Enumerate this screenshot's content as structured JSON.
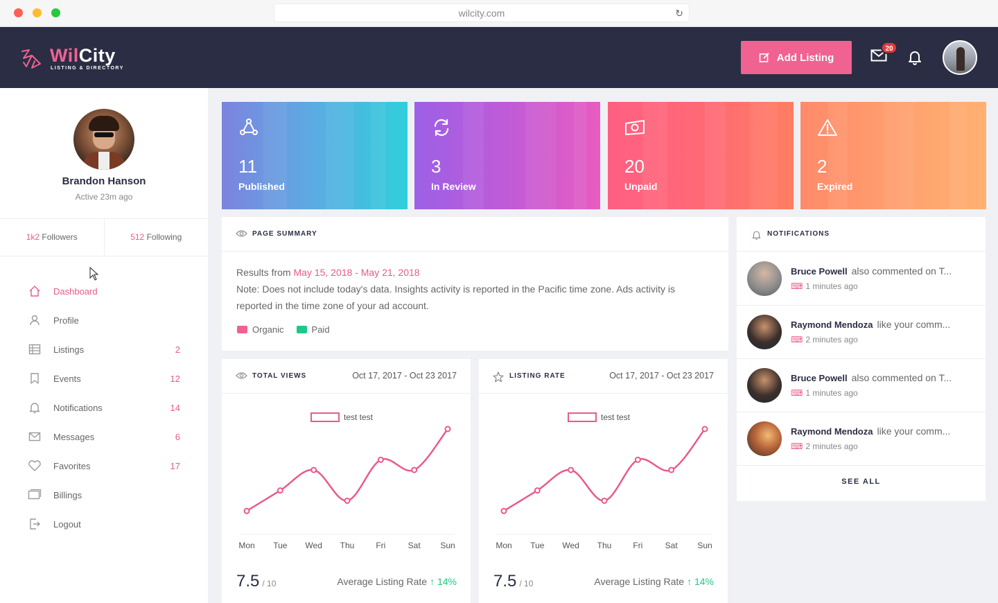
{
  "browser": {
    "url": "wilcity.com"
  },
  "header": {
    "logo_name_a": "Wil",
    "logo_name_b": "City",
    "logo_tag": "LISTING & DIRECTORY",
    "add_listing_label": "Add Listing",
    "mail_badge": "20"
  },
  "profile": {
    "name": "Brandon Hanson",
    "status": "Active 23m ago",
    "followers_count": "1k2",
    "followers_label": "Followers",
    "following_count": "512",
    "following_label": "Following"
  },
  "nav": [
    {
      "label": "Dashboard",
      "count": "",
      "icon": "home-icon"
    },
    {
      "label": "Profile",
      "count": "",
      "icon": "user-icon"
    },
    {
      "label": "Listings",
      "count": "2",
      "icon": "list-icon"
    },
    {
      "label": "Events",
      "count": "12",
      "icon": "bookmark-icon"
    },
    {
      "label": "Notifications",
      "count": "14",
      "icon": "bell-icon"
    },
    {
      "label": "Messages",
      "count": "6",
      "icon": "mail-icon"
    },
    {
      "label": "Favorites",
      "count": "17",
      "icon": "heart-icon"
    },
    {
      "label": "Billings",
      "count": "",
      "icon": "billing-icon"
    },
    {
      "label": "Logout",
      "count": "",
      "icon": "logout-icon"
    }
  ],
  "stats": [
    {
      "value": "11",
      "label": "Published",
      "icon": "triangle-nodes-icon"
    },
    {
      "value": "3",
      "label": "In Review",
      "icon": "refresh-icon"
    },
    {
      "value": "20",
      "label": "Unpaid",
      "icon": "money-icon"
    },
    {
      "value": "2",
      "label": "Expired",
      "icon": "warning-icon"
    }
  ],
  "summary": {
    "title": "PAGE SUMMARY",
    "results_prefix": "Results from",
    "date_range": "May 15, 2018 - May 21, 2018",
    "note_line1": "Note: Does not include today's data. Insights activity is reported in the Pacific time zone. Ads activity is",
    "note_line2": "reported in the time zone of your ad account.",
    "legend": [
      {
        "label": "Organic",
        "color": "#f06292"
      },
      {
        "label": "Paid",
        "color": "#1fc887"
      }
    ]
  },
  "total_views": {
    "title": "TOTAL VIEWS",
    "date": "Oct 17, 2017 - Oct 23 2017",
    "rating": "7.5",
    "rating_max": "/ 10",
    "avg_label": "Average Listing Rate",
    "avg_change": "↑ 14%"
  },
  "listing_rate": {
    "title": "LISTING RATE",
    "date": "Oct 17, 2017 - Oct 23 2017",
    "rating": "7.5",
    "rating_max": "/ 10",
    "avg_label": "Average Listing Rate",
    "avg_change": "↑ 14%"
  },
  "chart_data": [
    {
      "type": "line",
      "legend": "test test",
      "categories": [
        "Mon",
        "Tue",
        "Wed",
        "Thu",
        "Fri",
        "Sat",
        "Sun"
      ],
      "values": [
        1,
        3,
        5,
        2,
        6,
        5,
        9
      ],
      "ylim": [
        0,
        9
      ],
      "color": "#e85a8c",
      "grid": false
    },
    {
      "type": "line",
      "legend": "test test",
      "categories": [
        "Mon",
        "Tue",
        "Wed",
        "Thu",
        "Fri",
        "Sat",
        "Sun"
      ],
      "values": [
        1,
        3,
        5,
        2,
        6,
        5,
        9
      ],
      "ylim": [
        0,
        9
      ],
      "color": "#e85a8c",
      "grid": false
    }
  ],
  "notifications": {
    "title": "NOTIFICATIONS",
    "see_all": "SEE ALL",
    "items": [
      {
        "name": "Bruce Powell",
        "text": "also commented on T...",
        "time": "1 minutes ago"
      },
      {
        "name": "Raymond Mendoza",
        "text": "like your comm...",
        "time": "2 minutes ago"
      },
      {
        "name": "Bruce Powell",
        "text": "also commented on T...",
        "time": "1 minutes ago"
      },
      {
        "name": "Raymond Mendoza",
        "text": "like your comm...",
        "time": "2 minutes ago"
      }
    ]
  }
}
